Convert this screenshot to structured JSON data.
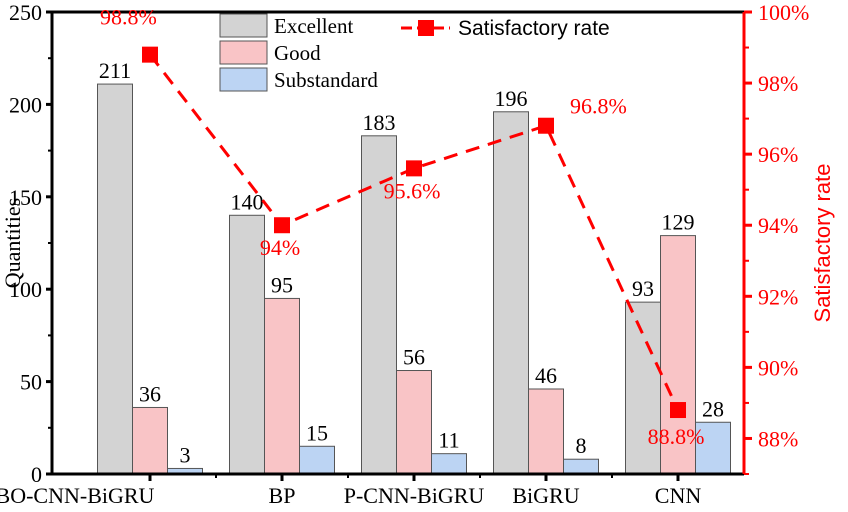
{
  "chart_data": {
    "type": "bar",
    "categories": [
      "BO-CNN-BiGRU",
      "BP",
      "P-CNN-BiGRU",
      "BiGRU",
      "CNN"
    ],
    "series": [
      {
        "name": "Excellent",
        "values": [
          211,
          140,
          183,
          196,
          93
        ],
        "color": "#d3d3d3"
      },
      {
        "name": "Good",
        "values": [
          36,
          95,
          56,
          46,
          129
        ],
        "color": "#f9c4c6"
      },
      {
        "name": "Substandard",
        "values": [
          3,
          15,
          11,
          8,
          28
        ],
        "color": "#bcd4f3"
      }
    ],
    "line_series": {
      "name": "Satisfactory rate",
      "values": [
        98.8,
        94,
        95.6,
        96.8,
        88.8
      ],
      "labels": [
        "98.8%",
        "94%",
        "95.6%",
        "96.8%",
        "88.8%"
      ],
      "color": "#ff0000",
      "axis": "right"
    },
    "ylabel": "Quantities",
    "y2label": "Satisfactory rate",
    "ylim": [
      0,
      250
    ],
    "y2lim": [
      87,
      100
    ],
    "yticks": [
      "0",
      "50",
      "100",
      "150",
      "200",
      "250"
    ],
    "y2ticks": [
      "88%",
      "90%",
      "92%",
      "94%",
      "96%",
      "98%",
      "100%"
    ],
    "legend": "top-center",
    "grid": false
  }
}
